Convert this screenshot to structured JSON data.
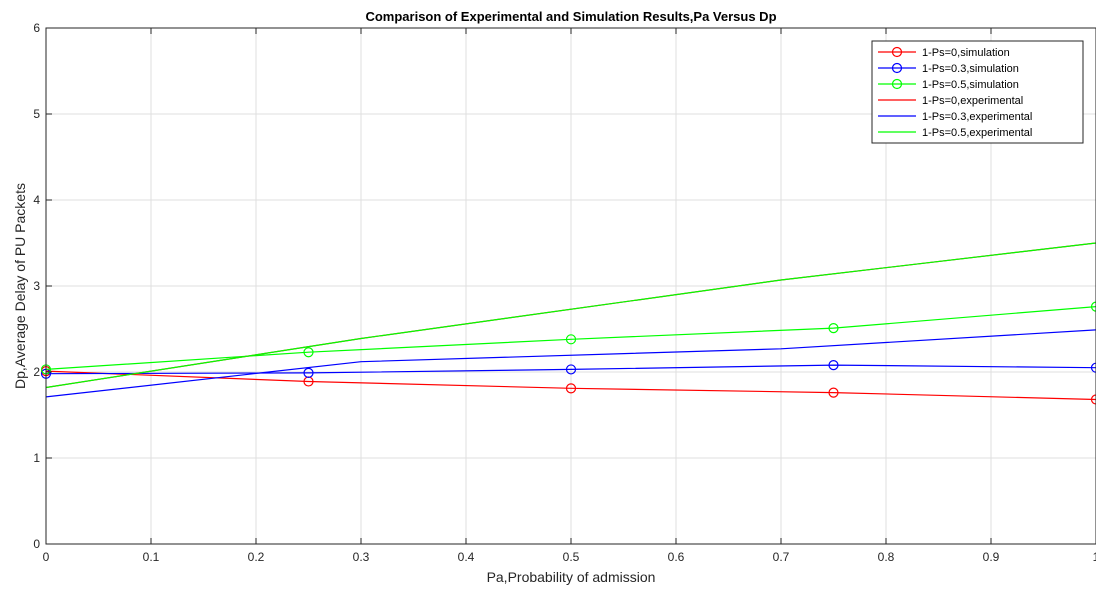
{
  "chart_data": {
    "type": "line",
    "title": "Comparison of Experimental and Simulation  Results,Pa Versus Dp",
    "xlabel": "Pa,Probability of admission",
    "ylabel": "Dp,Average Delay of PU Packets",
    "xlim": [
      0,
      1
    ],
    "ylim": [
      0,
      6
    ],
    "xticks": [
      0,
      0.1,
      0.2,
      0.3,
      0.4,
      0.5,
      0.6,
      0.7,
      0.8,
      0.9,
      1
    ],
    "xtick_labels": [
      "0",
      "0.1",
      "0.2",
      "0.3",
      "0.4",
      "0.5",
      "0.6",
      "0.7",
      "0.8",
      "0.9",
      "1"
    ],
    "yticks": [
      0,
      1,
      2,
      3,
      4,
      5,
      6
    ],
    "ytick_labels": [
      "0",
      "1",
      "2",
      "3",
      "4",
      "5",
      "6"
    ],
    "grid": true,
    "legend_position": "top-right",
    "series": [
      {
        "name": "1-Ps=0,simulation",
        "color": "#ff0000",
        "marker": "circle",
        "x": [
          0,
          0.25,
          0.5,
          0.75,
          1
        ],
        "y": [
          2.01,
          1.89,
          1.81,
          1.76,
          1.68
        ]
      },
      {
        "name": "1-Ps=0.3,simulation",
        "color": "#0000ff",
        "marker": "circle",
        "x": [
          0,
          0.25,
          0.5,
          0.75,
          1
        ],
        "y": [
          1.98,
          1.99,
          2.03,
          2.08,
          2.05
        ]
      },
      {
        "name": "1-Ps=0.5,simulation",
        "color": "#00ff00",
        "marker": "circle",
        "x": [
          0,
          0.25,
          0.5,
          0.75,
          1
        ],
        "y": [
          2.03,
          2.23,
          2.38,
          2.51,
          2.76
        ]
      },
      {
        "name": "1-Ps=0,experimental",
        "color": "#ff0000",
        "marker": "none",
        "x": [
          0,
          0.3,
          0.7,
          1
        ],
        "y": [
          1.82,
          2.39,
          3.07,
          3.5
        ]
      },
      {
        "name": "1-Ps=0.3,experimental",
        "color": "#0000ff",
        "marker": "none",
        "x": [
          0,
          0.3,
          0.7,
          1
        ],
        "y": [
          1.71,
          2.12,
          2.27,
          2.49
        ]
      },
      {
        "name": "1-Ps=0.5,experimental",
        "color": "#00ff00",
        "marker": "none",
        "x": [
          0,
          0.3,
          0.7,
          1
        ],
        "y": [
          1.82,
          2.39,
          3.07,
          3.5
        ]
      }
    ]
  }
}
